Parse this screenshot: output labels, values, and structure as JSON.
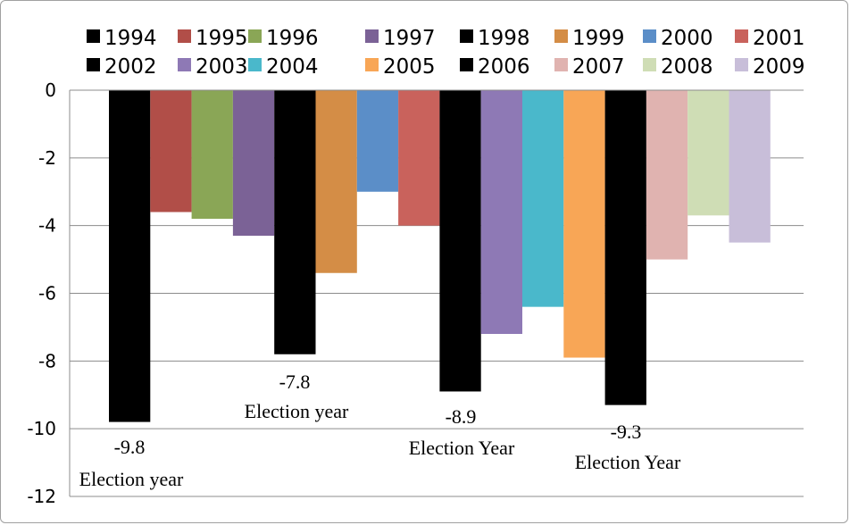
{
  "chart_data": {
    "type": "bar",
    "title": "",
    "xlabel": "",
    "ylabel": "",
    "ylim": [
      -12,
      0
    ],
    "yticks": [
      0,
      -2,
      -4,
      -6,
      -8,
      -10,
      -12
    ],
    "grid": true,
    "legend_position": "top",
    "series": [
      {
        "name": "1994",
        "value": -9.8,
        "color": "#000000"
      },
      {
        "name": "1995",
        "value": -3.6,
        "color": "#b14e48"
      },
      {
        "name": "1996",
        "value": -3.8,
        "color": "#8aa656"
      },
      {
        "name": "1997",
        "value": -4.3,
        "color": "#7b6296"
      },
      {
        "name": "1998",
        "value": -7.8,
        "color": "#000000"
      },
      {
        "name": "1999",
        "value": -5.4,
        "color": "#d48d46"
      },
      {
        "name": "2000",
        "value": -3.0,
        "color": "#5b8ec8"
      },
      {
        "name": "2001",
        "value": -4.0,
        "color": "#c9625c"
      },
      {
        "name": "2002",
        "value": -8.9,
        "color": "#000000"
      },
      {
        "name": "2003",
        "value": -7.2,
        "color": "#8e79b5"
      },
      {
        "name": "2004",
        "value": -6.4,
        "color": "#4ab8cb"
      },
      {
        "name": "2005",
        "value": -7.9,
        "color": "#f8a656"
      },
      {
        "name": "2006",
        "value": -9.3,
        "color": "#000000"
      },
      {
        "name": "2007",
        "value": -5.0,
        "color": "#e0b3b0"
      },
      {
        "name": "2008",
        "value": -3.7,
        "color": "#cfddb5"
      },
      {
        "name": "2009",
        "value": -4.5,
        "color": "#c8bed9"
      }
    ],
    "annotations": [
      {
        "value_label": "-9.8",
        "note": "Election year",
        "series": "1994"
      },
      {
        "value_label": "-7.8",
        "note": "Election year",
        "series": "1998"
      },
      {
        "value_label": "-8.9",
        "note": "Election Year",
        "series": "2002"
      },
      {
        "value_label": "-9.3",
        "note": "Election Year",
        "series": "2006"
      }
    ]
  }
}
